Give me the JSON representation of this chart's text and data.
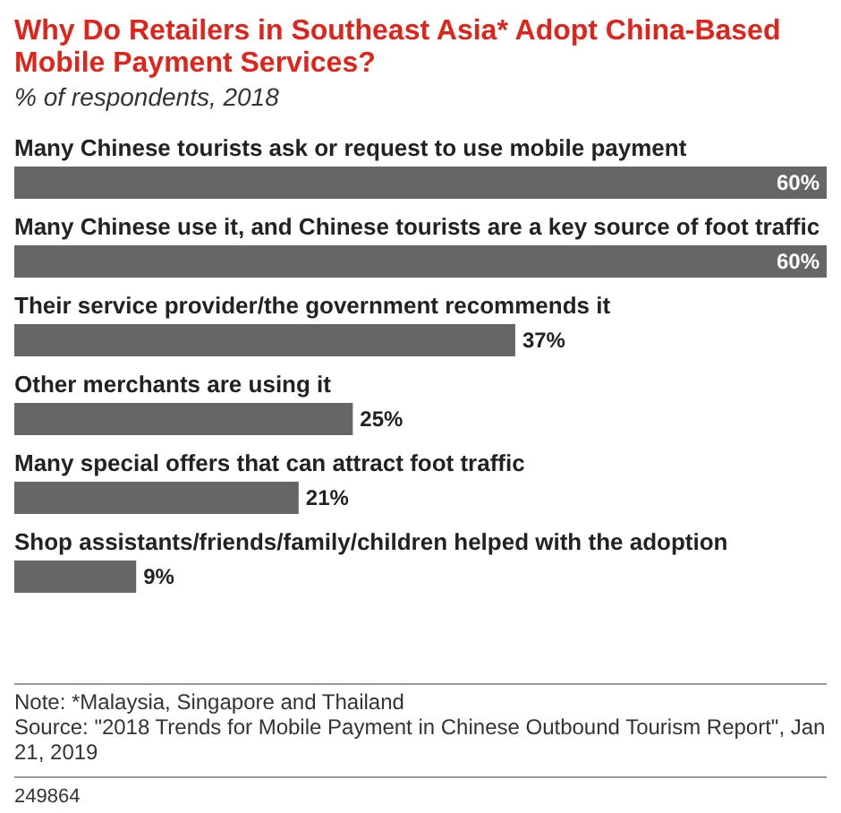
{
  "chart_data": {
    "type": "bar",
    "orientation": "horizontal",
    "title": "Why Do Retailers in Southeast Asia* Adopt China-Based Mobile Payment Services?",
    "subtitle": "% of respondents, 2018",
    "categories": [
      "Many Chinese tourists ask or request to use mobile payment",
      "Many Chinese use it, and Chinese tourists are a key source of foot traffic",
      "Their service provider/the government recommends it",
      "Other merchants are using it",
      "Many special offers that can attract foot traffic",
      "Shop assistants/friends/family/children helped with the adoption"
    ],
    "values": [
      60,
      60,
      37,
      25,
      21,
      9
    ],
    "value_labels": [
      "60%",
      "60%",
      "37%",
      "25%",
      "21%",
      "9%"
    ],
    "color": "#666666",
    "annotations": [
      "Note: *Malaysia, Singapore and Thailand",
      "Source: \"2018 Trends for Mobile Payment in Chinese Outbound Tourism Report\", Jan 21, 2019",
      "249864"
    ]
  }
}
